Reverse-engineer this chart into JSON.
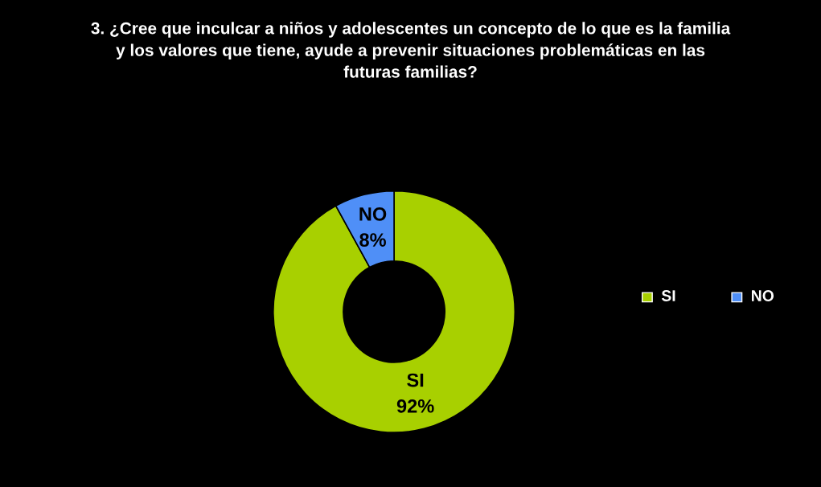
{
  "chart_data": {
    "type": "donut",
    "title": "3. ¿Cree que inculcar a niños y adolescentes un concepto de lo que es la familia\ny los valores que tiene, ayude a prevenir situaciones problemáticas en las\nfuturas familias?",
    "categories": [
      "SI",
      "NO"
    ],
    "values": [
      92,
      8
    ],
    "colors": [
      "#a8d000",
      "#4f8ff7"
    ],
    "value_labels": [
      "SI\n92%",
      "NO\n8%"
    ],
    "legend": "right"
  }
}
